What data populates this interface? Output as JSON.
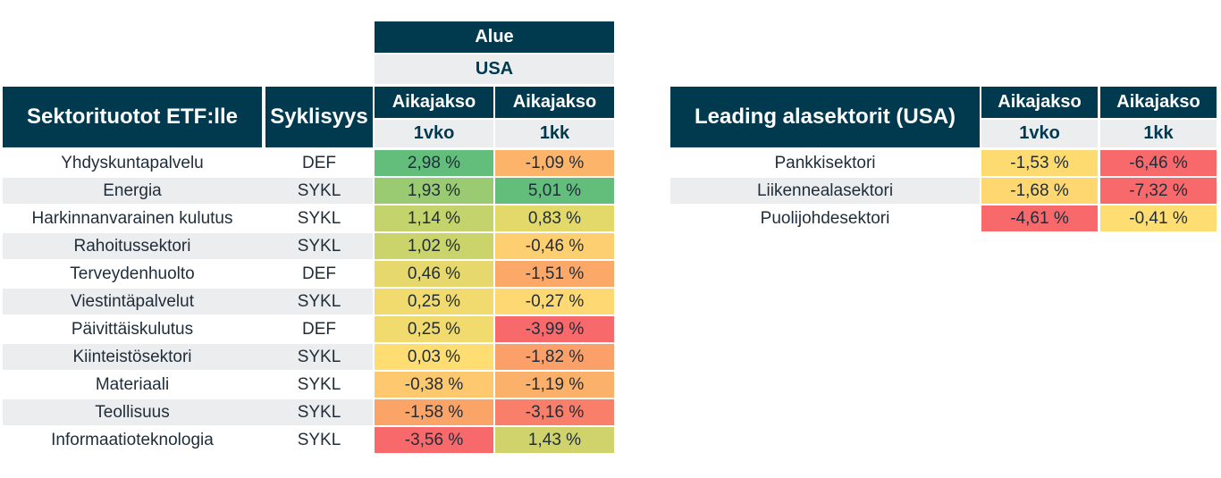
{
  "left_table": {
    "region_label": "Alue",
    "region_value": "USA",
    "title": "Sektorituotot ETF:lle",
    "cyclicality_header": "Syklisyys",
    "period_label": "Aikajakso",
    "col1_sub": "1vko",
    "col2_sub": "1kk",
    "rows": [
      {
        "sector": "Yhdyskuntapalvelu",
        "cycl": "DEF",
        "v1": "2,98 %",
        "v2": "-1,09 %",
        "c1": "#63be7b",
        "c2": "#fcb46b"
      },
      {
        "sector": "Energia",
        "cycl": "SYKL",
        "v1": "1,93 %",
        "v2": "5,01 %",
        "c1": "#9acb72",
        "c2": "#63be7b"
      },
      {
        "sector": "Harkinnanvarainen kulutus",
        "cycl": "SYKL",
        "v1": "1,14 %",
        "v2": "0,83 %",
        "c1": "#c4d36b",
        "c2": "#e3d96a"
      },
      {
        "sector": "Rahoitussektori",
        "cycl": "SYKL",
        "v1": "1,02 %",
        "v2": "-0,46 %",
        "c1": "#cad46b",
        "c2": "#fdcf70"
      },
      {
        "sector": "Terveydenhuolto",
        "cycl": "DEF",
        "v1": "0,46 %",
        "v2": "-1,51 %",
        "c1": "#e6d86c",
        "c2": "#fba869"
      },
      {
        "sector": "Viestintäpalvelut",
        "cycl": "SYKL",
        "v1": "0,25 %",
        "v2": "-0,27 %",
        "c1": "#f2db6e",
        "c2": "#fed872"
      },
      {
        "sector": "Päivittäiskulutus",
        "cycl": "DEF",
        "v1": "0,25 %",
        "v2": "-3,99 %",
        "c1": "#f2db6e",
        "c2": "#f8696b"
      },
      {
        "sector": "Kiinteistösektori",
        "cycl": "SYKL",
        "v1": "0,03 %",
        "v2": "-1,82 %",
        "c1": "#fede73",
        "c2": "#fba068"
      },
      {
        "sector": "Materiaali",
        "cycl": "SYKL",
        "v1": "-0,38 %",
        "v2": "-1,19 %",
        "c1": "#fdc86e",
        "c2": "#fcb16b"
      },
      {
        "sector": "Teollisuus",
        "cycl": "SYKL",
        "v1": "-1,58 %",
        "v2": "-3,16 %",
        "c1": "#fba468",
        "c2": "#f97f6b"
      },
      {
        "sector": "Informaatioteknologia",
        "cycl": "SYKL",
        "v1": "-3,56 %",
        "v2": "1,43 %",
        "c1": "#f8696b",
        "c2": "#d0d36b"
      }
    ]
  },
  "right_table": {
    "title": "Leading alasektorit (USA)",
    "period_label": "Aikajakso",
    "col1_sub": "1vko",
    "col2_sub": "1kk",
    "rows": [
      {
        "sector": "Pankkisektori",
        "v1": "-1,53 %",
        "v2": "-6,46 %",
        "c1": "#fedb71",
        "c2": "#f8696b"
      },
      {
        "sector": "Liikennealasektori",
        "v1": "-1,68 %",
        "v2": "-7,32 %",
        "c1": "#fed770",
        "c2": "#f8696b"
      },
      {
        "sector": "Puolijohdesektori",
        "v1": "-4,61 %",
        "v2": "-0,41 %",
        "c1": "#f8696b",
        "c2": "#fede73"
      }
    ]
  }
}
